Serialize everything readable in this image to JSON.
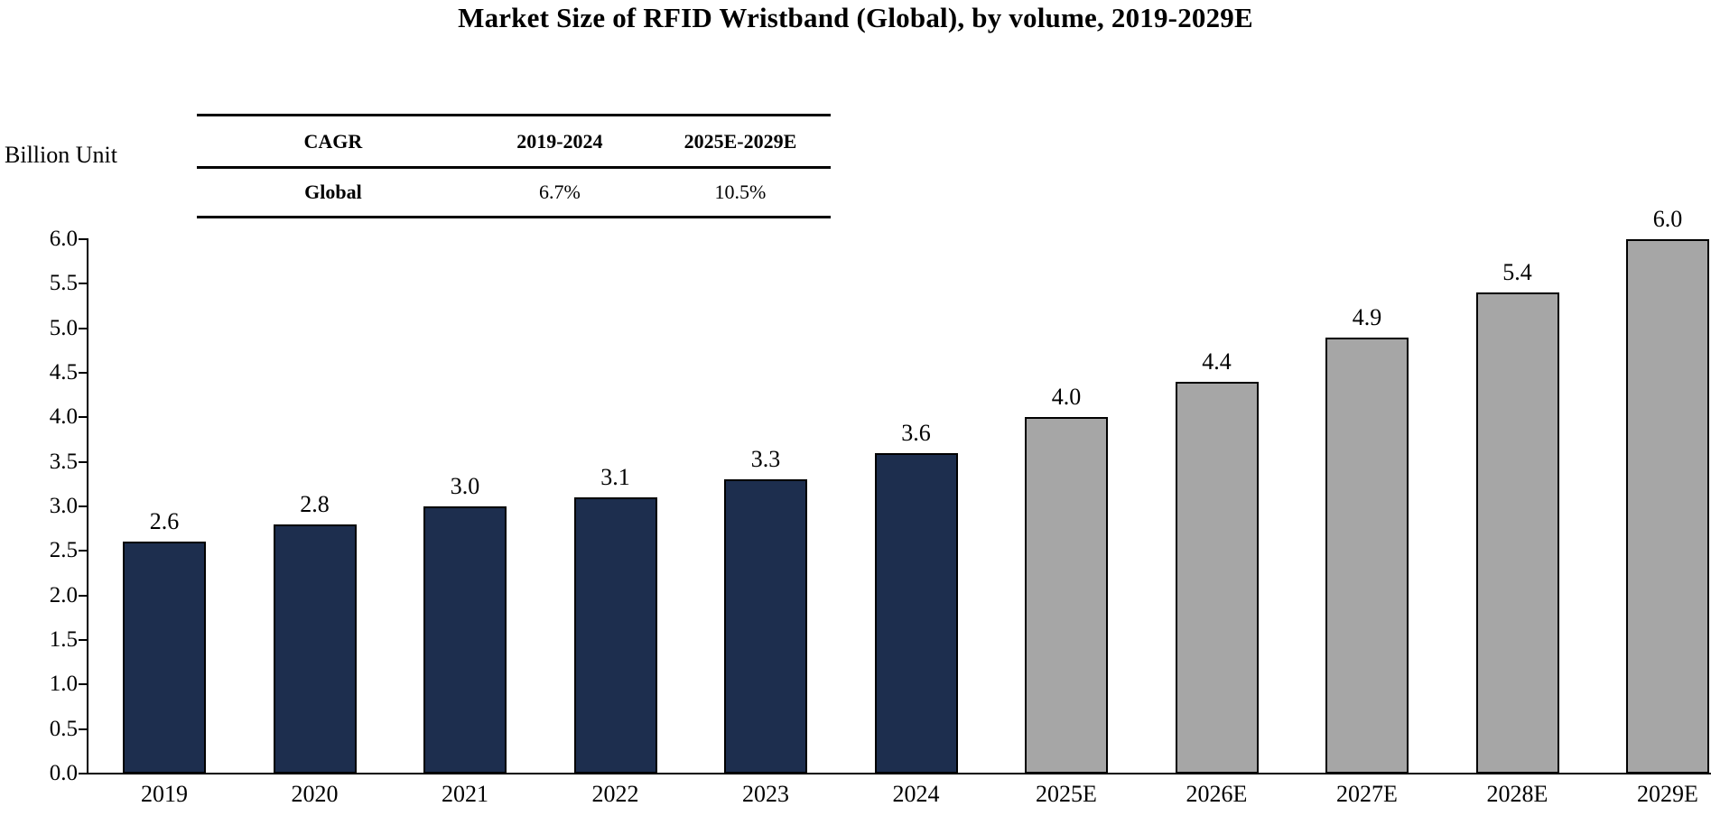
{
  "chart": {
    "title": "Market Size of RFID Wristband (Global), by volume, 2019-2029E",
    "unit_label": "Billion Unit"
  },
  "cagr_table": {
    "headers": [
      "CAGR",
      "2019-2024",
      "2025E-2029E"
    ],
    "row": [
      "Global",
      "6.7%",
      "10.5%"
    ]
  },
  "chart_data": {
    "type": "bar",
    "title": "Market Size of RFID Wristband (Global), by volume, 2019-2029E",
    "xlabel": "",
    "ylabel": "Billion Unit",
    "categories": [
      "2019",
      "2020",
      "2021",
      "2022",
      "2023",
      "2024",
      "2025E",
      "2026E",
      "2027E",
      "2028E",
      "2029E"
    ],
    "values": [
      2.6,
      2.8,
      3.0,
      3.1,
      3.3,
      3.6,
      4.0,
      4.4,
      4.9,
      5.4,
      6.0
    ],
    "bar_labels": [
      "2.6",
      "2.8",
      "3.0",
      "3.1",
      "3.3",
      "3.6",
      "4.0",
      "4.4",
      "4.9",
      "5.4",
      "6.0"
    ],
    "ylim": [
      0.0,
      6.0
    ],
    "ytick_step": 0.5,
    "ytick_labels": [
      "0.0",
      "0.5",
      "1.0",
      "1.5",
      "2.0",
      "2.5",
      "3.0",
      "3.5",
      "4.0",
      "4.5",
      "5.0",
      "5.5",
      "6.0"
    ],
    "grid": false,
    "legend": false,
    "estimate_start_index": 6,
    "colors": {
      "actual_bar": "#1d2e4e",
      "estimate_bar": "#a6a6a6",
      "bar_border": "#000000",
      "axis": "#000000",
      "text": "#000000"
    },
    "annotations": {
      "cagr_rows": [
        {
          "label": "Global",
          "period_1": "2019-2024",
          "value_1": "6.7%",
          "period_2": "2025E-2029E",
          "value_2": "10.5%"
        }
      ]
    }
  }
}
